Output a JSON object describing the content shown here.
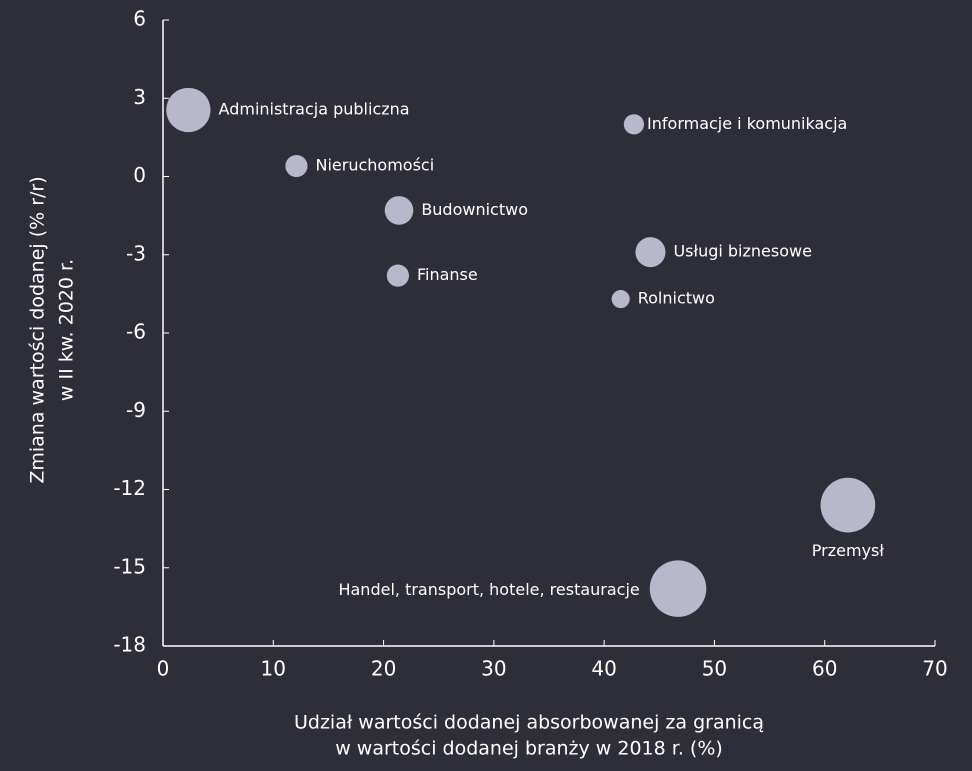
{
  "chart_data": {
    "type": "scatter",
    "xlabel": [
      "Udział wartości dodanej absorbowanej za granicą",
      "w wartości dodanej branży w 2018 r. (%)"
    ],
    "ylabel": [
      "Zmiana wartości dodanej (% r/r)",
      "w II kw. 2020 r."
    ],
    "color": "#b8b7cb",
    "labels": [
      "Administracja publiczna",
      "Nieruchomości",
      "Budownictwo",
      "Finanse",
      "Informacje i komunikacja",
      "Usługi biznesowe",
      "Rolnictwo",
      "Przemysł",
      "Handel, transport, hotele, restauracje"
    ],
    "x": [
      2.3,
      12.1,
      21.4,
      21.3,
      42.7,
      44.2,
      41.5,
      62.1,
      46.7
    ],
    "values": [
      2.55,
      0.4,
      -1.3,
      -3.8,
      2.0,
      -2.9,
      -4.7,
      -12.6,
      -15.8
    ],
    "sizes": [
      48,
      12,
      20,
      12,
      10,
      22,
      8,
      73,
      78
    ],
    "xlim": [
      0,
      70
    ],
    "xticks": [
      0,
      10,
      20,
      30,
      40,
      50,
      60,
      70
    ],
    "ylim": [
      -18,
      6
    ],
    "yticks": [
      -18,
      -15,
      -12,
      -9,
      -6,
      -3,
      0,
      3,
      6
    ]
  }
}
